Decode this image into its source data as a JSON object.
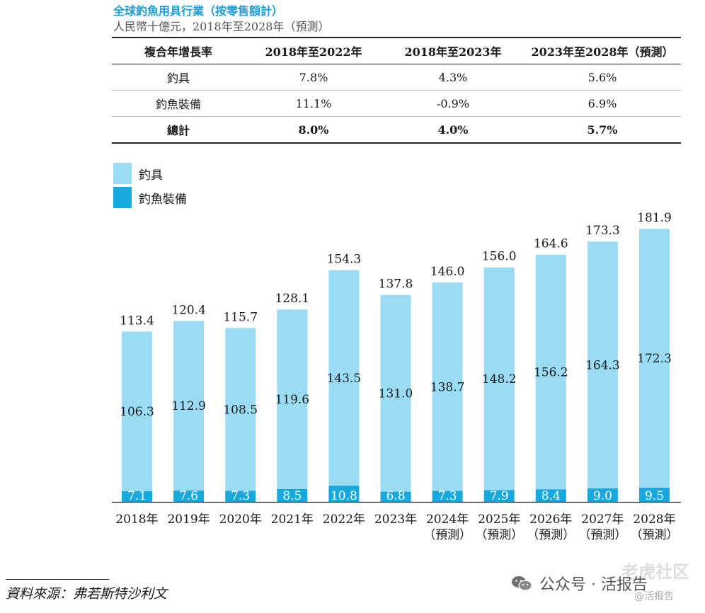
{
  "title": "全球釣魚用具行業（按零售額計）",
  "subtitle": "人民幣十億元，2018年至2028年（預測）",
  "cagr_table": {
    "headers": [
      "複合年增長率",
      "2018年至2022年",
      "2018年至2023年",
      "2023年至2028年（預測）"
    ],
    "rows": [
      {
        "label": "釣具",
        "values": [
          "7.8%",
          "4.3%",
          "5.6%"
        ]
      },
      {
        "label": "釣魚裝備",
        "values": [
          "11.1%",
          "-0.9%",
          "6.9%"
        ]
      },
      {
        "label": "總計",
        "values": [
          "8.0%",
          "4.0%",
          "5.7%"
        ]
      }
    ]
  },
  "legend": [
    {
      "label": "釣具",
      "color": "#9adcf5"
    },
    {
      "label": "釣魚裝備",
      "color": "#17a8e0"
    }
  ],
  "chart_data": {
    "type": "bar",
    "stacked": true,
    "categories": [
      "2018年",
      "2019年",
      "2020年",
      "2021年",
      "2022年",
      "2023年",
      "2024年\n（預測）",
      "2025年\n（預測）",
      "2026年\n（預測）",
      "2027年\n（預測）",
      "2028年\n（預測）"
    ],
    "series": [
      {
        "name": "釣魚裝備",
        "color": "#17a8e0",
        "values": [
          7.1,
          7.6,
          7.3,
          8.5,
          10.8,
          6.8,
          7.3,
          7.9,
          8.4,
          9.0,
          9.5
        ]
      },
      {
        "name": "釣具",
        "color": "#9adcf5",
        "values": [
          106.3,
          112.9,
          108.5,
          119.6,
          143.5,
          131.0,
          138.7,
          148.2,
          156.2,
          164.3,
          172.3
        ]
      }
    ],
    "totals": [
      "113.4",
      "120.4",
      "115.7",
      "128.1",
      "154.3",
      "137.8",
      "146.0",
      "156.0",
      "164.6",
      "173.3",
      "181.9"
    ],
    "ylim": [
      0,
      181.9
    ],
    "grid": false,
    "legend_position": "top-left"
  },
  "source": "資料來源：弗若斯特沙利文",
  "watermark": {
    "text": "公众号 · 活报告",
    "sub": "@活报告",
    "back": "老虎社区"
  }
}
